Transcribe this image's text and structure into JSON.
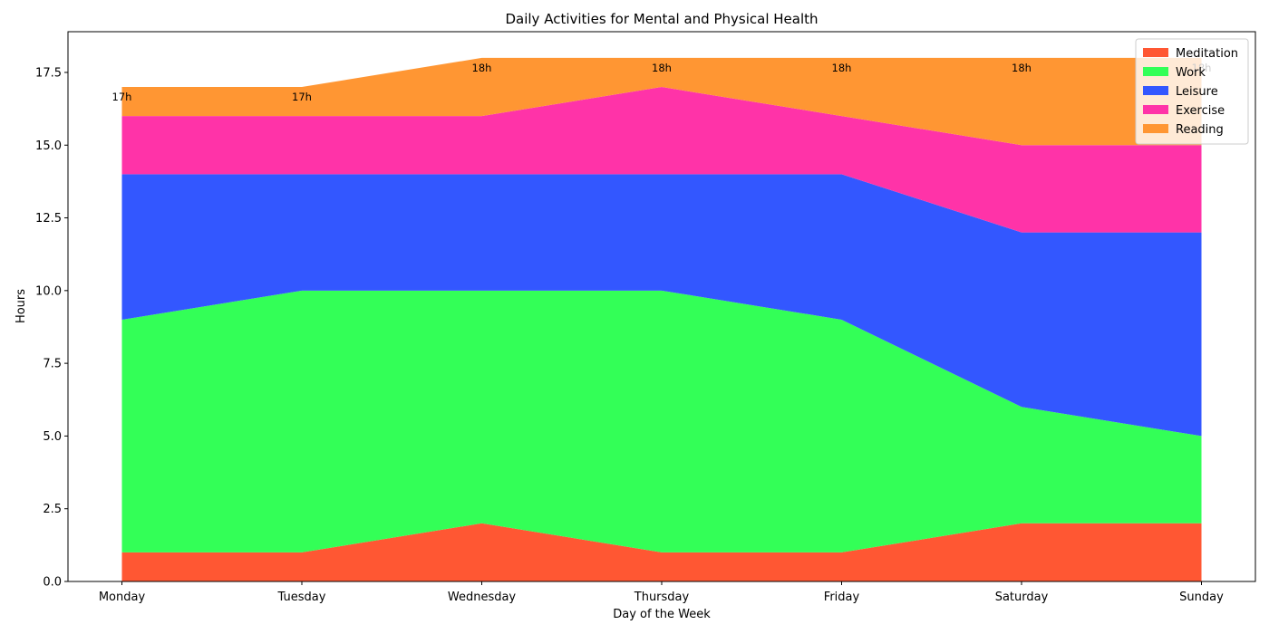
{
  "chart_data": {
    "type": "area",
    "stacked": true,
    "title": "Daily Activities for Mental and Physical Health",
    "xlabel": "Day of the Week",
    "ylabel": "Hours",
    "categories": [
      "Monday",
      "Tuesday",
      "Wednesday",
      "Thursday",
      "Friday",
      "Saturday",
      "Sunday"
    ],
    "ylim": [
      0,
      18.9
    ],
    "yticks": [
      "0.0",
      "2.5",
      "5.0",
      "7.5",
      "10.0",
      "12.5",
      "15.0",
      "17.5"
    ],
    "grid": false,
    "legend_position": "top-right",
    "series": [
      {
        "name": "Meditation",
        "color": "#FF5733",
        "values": [
          1,
          1,
          2,
          1,
          1,
          2,
          2
        ]
      },
      {
        "name": "Work",
        "color": "#33FF57",
        "values": [
          8,
          9,
          8,
          9,
          8,
          4,
          3
        ]
      },
      {
        "name": "Leisure",
        "color": "#3357FF",
        "values": [
          5,
          4,
          4,
          4,
          5,
          6,
          7
        ]
      },
      {
        "name": "Exercise",
        "color": "#FF33A8",
        "values": [
          2,
          2,
          2,
          3,
          2,
          3,
          3
        ]
      },
      {
        "name": "Reading",
        "color": "#FF9633",
        "values": [
          1,
          1,
          2,
          1,
          2,
          3,
          3
        ]
      }
    ],
    "total_labels": [
      "17h",
      "17h",
      "18h",
      "18h",
      "18h",
      "18h",
      "18h"
    ]
  }
}
